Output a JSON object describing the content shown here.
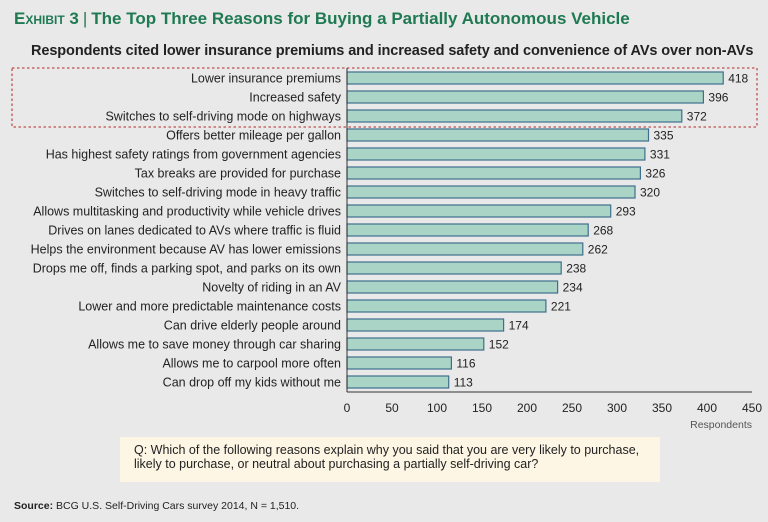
{
  "title": {
    "exhibit": "Exhibit 3",
    "text": "The Top Three Reasons for Buying a Partially Autonomous Vehicle"
  },
  "subtitle": "Respondents cited lower insurance premiums and increased safety and convenience of AVs over non-AVs",
  "question": "Q: Which of the following reasons explain why you said that you are very likely to purchase, likely to purchase, or neutral about purchasing a partially self-driving car?",
  "source": {
    "label": "Source:",
    "text": "BCG U.S. Self-Driving Cars survey 2014, N = 1,510."
  },
  "colors": {
    "title": "#1f7a52",
    "bar_fill": "#a9d4c6",
    "bar_stroke": "#3f6f8c",
    "highlight_box": "#c0504d",
    "question_bg": "#fdf6e4"
  },
  "chart_data": {
    "type": "bar",
    "orientation": "horizontal",
    "categories": [
      "Lower insurance premiums",
      "Increased safety",
      "Switches to self-driving mode on highways",
      "Offers better mileage per gallon",
      "Has highest safety ratings from government agencies",
      "Tax breaks are provided for purchase",
      "Switches to self-driving mode in heavy traffic",
      "Allows multitasking and productivity while vehicle drives",
      "Drives on lanes dedicated to AVs where traffic is fluid",
      "Helps the environment because AV has lower emissions",
      "Drops me off, finds a parking spot, and parks on its own",
      "Novelty of riding in an AV",
      "Lower and more predictable maintenance costs",
      "Can drive elderly people around",
      "Allows me to save money through car sharing",
      "Allows me to carpool more often",
      "Can drop off my kids without me"
    ],
    "values": [
      418,
      396,
      372,
      335,
      331,
      326,
      320,
      293,
      268,
      262,
      238,
      234,
      221,
      174,
      152,
      116,
      113
    ],
    "highlighted": [
      "Lower insurance premiums",
      "Increased safety",
      "Switches to self-driving mode on highways"
    ],
    "xlabel": "Respondents",
    "xlim": [
      0,
      450
    ],
    "xticks": [
      0,
      50,
      100,
      150,
      200,
      250,
      300,
      350,
      400,
      450
    ],
    "grid": false
  }
}
